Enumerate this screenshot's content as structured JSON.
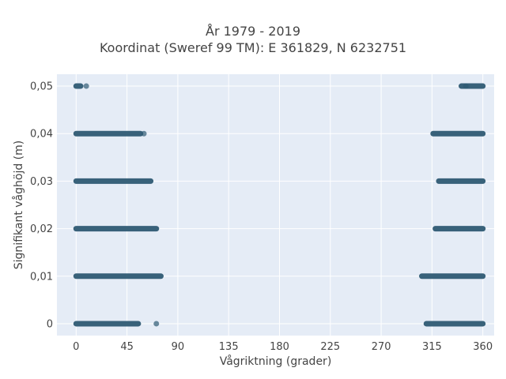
{
  "chart_data": {
    "type": "scatter",
    "title": "År 1979 - 2019",
    "subtitle": "Koordinat (Sweref 99 TM): E 361829, N 6232751",
    "xlabel": "Vågriktning (grader)",
    "ylabel": "Signifikant våghöjd (m)",
    "xlim": [
      -17,
      370
    ],
    "ylim": [
      -0.0025,
      0.0525
    ],
    "xticks": [
      0,
      45,
      90,
      135,
      180,
      225,
      270,
      315,
      360
    ],
    "xtick_labels": [
      "0",
      "45",
      "90",
      "135",
      "180",
      "225",
      "270",
      "315",
      "360"
    ],
    "yticks": [
      0,
      0.01,
      0.02,
      0.03,
      0.04,
      0.05
    ],
    "ytick_labels": [
      "0",
      "0,01",
      "0,02",
      "0,03",
      "0,04",
      "0,05"
    ],
    "grid": true,
    "marker_color": "#2e5a73",
    "background": "#e5ecf6",
    "series": [
      {
        "bands": [
          {
            "y": 0.05,
            "ranges": [
              [
                0,
                4
              ],
              [
                341,
                360
              ]
            ],
            "points": [
              9,
              345
            ]
          },
          {
            "y": 0.04,
            "ranges": [
              [
                0,
                57
              ],
              [
                316,
                360
              ]
            ],
            "points": [
              60
            ]
          },
          {
            "y": 0.03,
            "ranges": [
              [
                0,
                66
              ],
              [
                321,
                360
              ]
            ],
            "points": []
          },
          {
            "y": 0.02,
            "ranges": [
              [
                0,
                71
              ],
              [
                318,
                360
              ]
            ],
            "points": []
          },
          {
            "y": 0.01,
            "ranges": [
              [
                0,
                75
              ],
              [
                306,
                360
              ]
            ],
            "points": []
          },
          {
            "y": 0.0,
            "ranges": [
              [
                0,
                55
              ],
              [
                310,
                360
              ]
            ],
            "points": [
              71
            ]
          }
        ]
      }
    ]
  }
}
